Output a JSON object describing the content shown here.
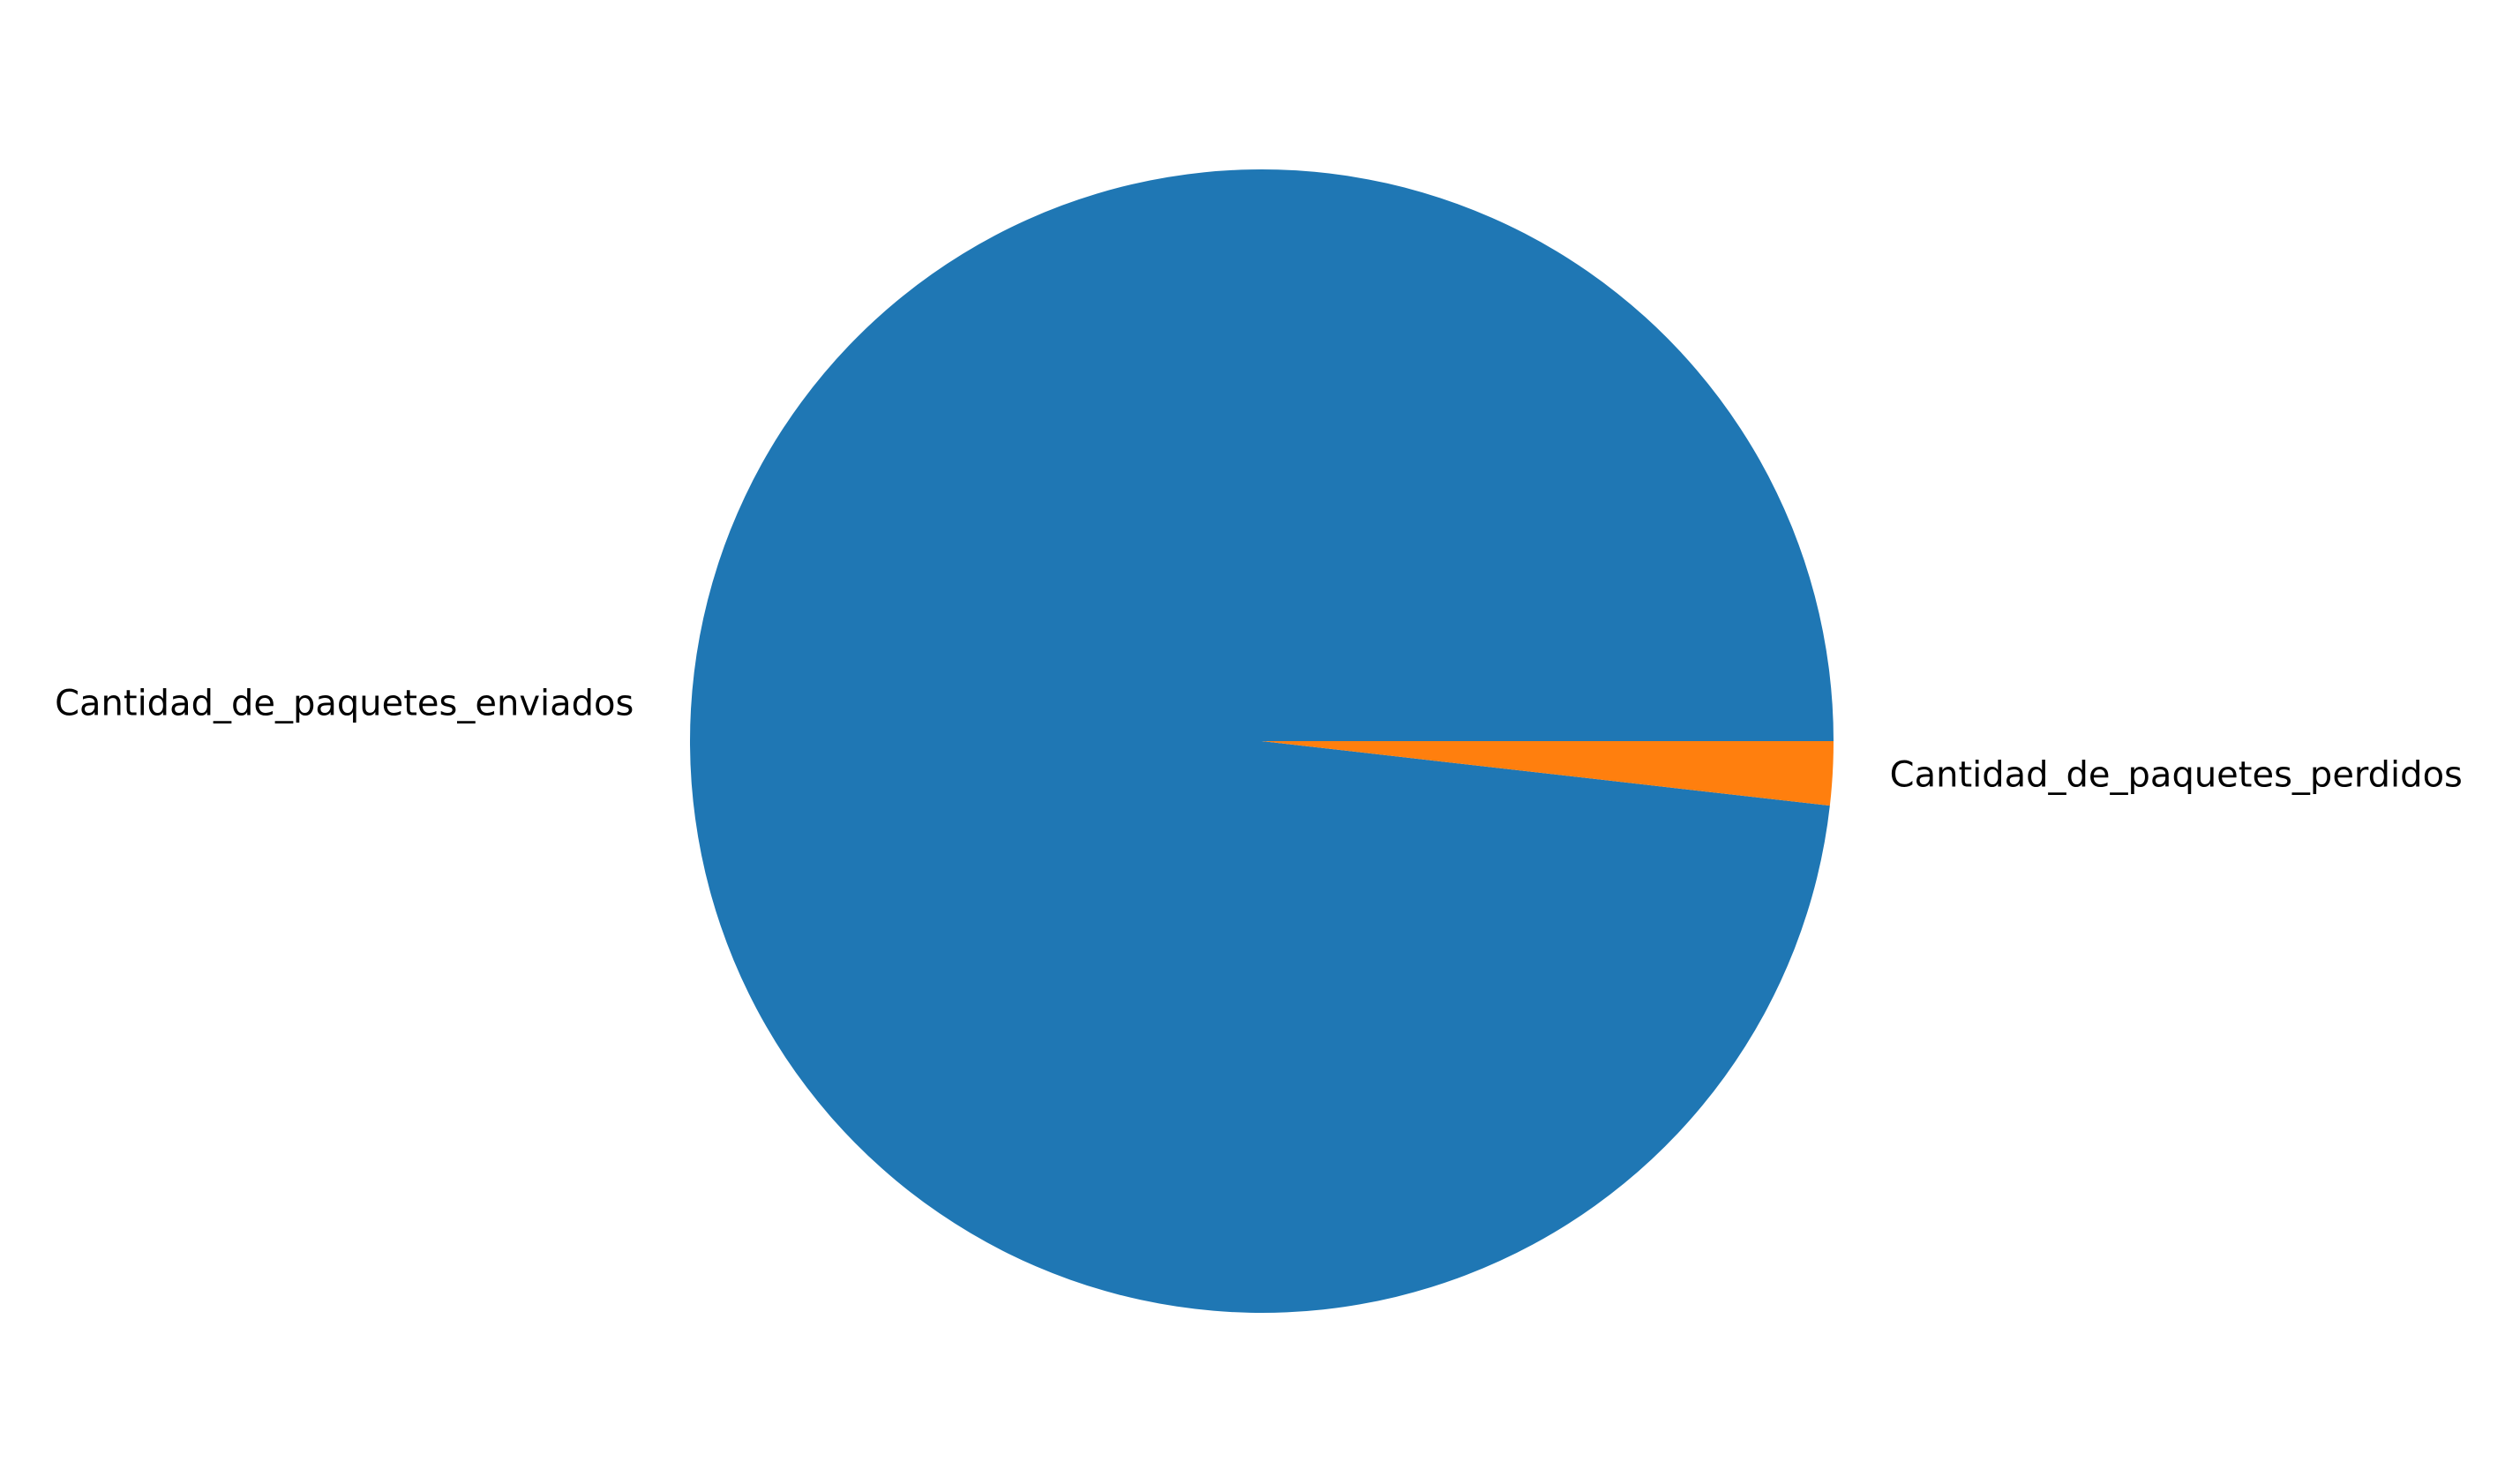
{
  "chart_data": {
    "type": "pie",
    "title": "",
    "slices": [
      {
        "label": "Cantidad_de_paquetes_enviados",
        "value": 98.2,
        "color": "#1f77b4"
      },
      {
        "label": "Cantidad_de_paquetes_perdidos",
        "value": 1.8,
        "color": "#ff7f0e"
      }
    ],
    "start_angle_deg": 0,
    "direction": "counterclockwise",
    "legend": "none"
  }
}
